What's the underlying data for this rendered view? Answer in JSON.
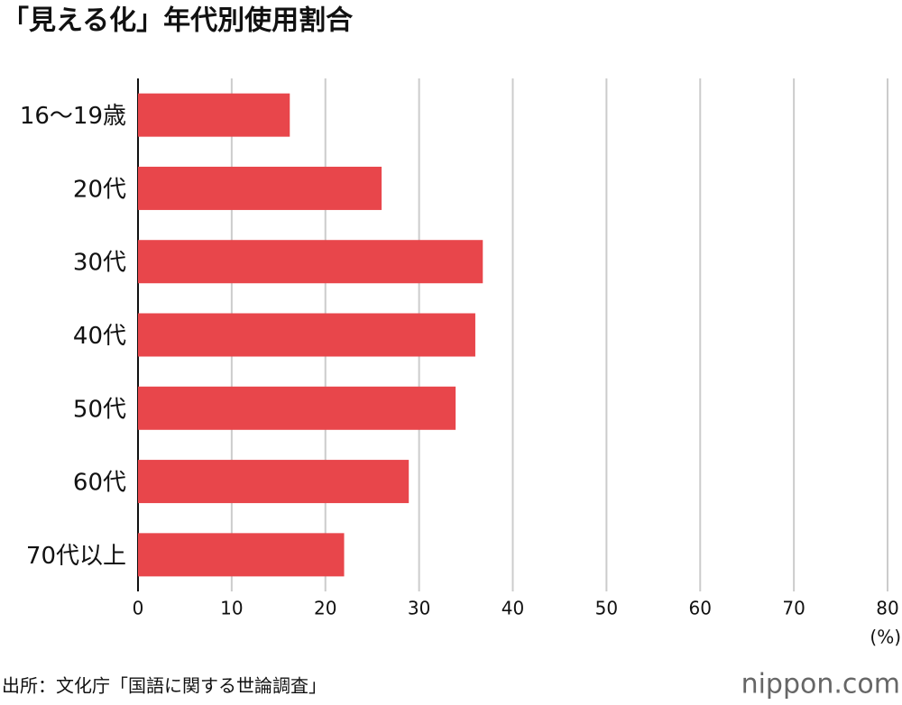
{
  "chart_data": {
    "type": "bar",
    "orientation": "horizontal",
    "title": "「見える化」年代別使用割合",
    "categories": [
      "16〜19歳",
      "20代",
      "30代",
      "40代",
      "50代",
      "60代",
      "70代以上"
    ],
    "values": [
      16.2,
      26.0,
      36.8,
      36.0,
      33.9,
      28.9,
      22.0
    ],
    "color": "#e8464b",
    "xlim": [
      0,
      80
    ],
    "xticks": [
      0,
      10,
      20,
      30,
      40,
      50,
      60,
      70,
      80
    ],
    "x_unit": "(%)",
    "grid": true,
    "source": "出所：文化庁「国語に関する世論調査」",
    "logo": "nippon.com"
  }
}
